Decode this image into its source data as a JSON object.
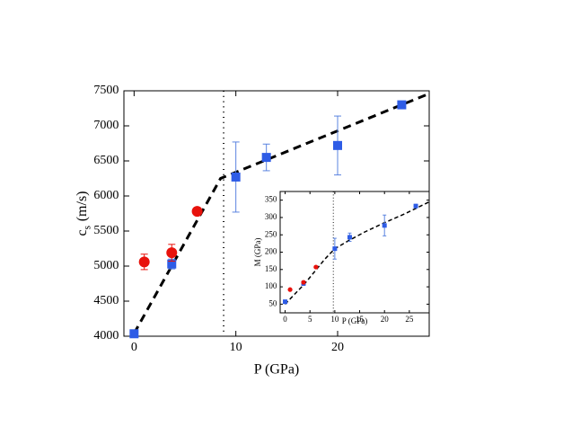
{
  "chart_data": [
    {
      "type": "scatter",
      "xlabel": "P (GPa)",
      "ylabel": "c",
      "ylabel_sub": "s",
      "ylabel_unit": "(m/s)",
      "xlim": [
        -1,
        29
      ],
      "ylim": [
        4000,
        7500
      ],
      "xticks": [
        0,
        10,
        20
      ],
      "yticks": [
        4000,
        4500,
        5000,
        5500,
        6000,
        6500,
        7000,
        7500
      ],
      "vline": 8.8,
      "fits": [
        {
          "color": "#000000",
          "x": [
            0,
            8.5,
            29
          ],
          "values": [
            4040,
            6250,
            7460
          ]
        }
      ],
      "series": [
        {
          "marker": "square",
          "color": "#2e5ce6",
          "error_color": "#5b84e0",
          "x": [
            0,
            3.7,
            10,
            13,
            20,
            26.3
          ],
          "values": [
            4035,
            5030,
            6270,
            6550,
            6720,
            7300
          ],
          "errors": [
            20,
            70,
            500,
            190,
            420,
            30
          ]
        },
        {
          "marker": "circle",
          "color": "#e8120c",
          "error_color": "#e8120c",
          "x": [
            1,
            3.7,
            6.2
          ],
          "values": [
            5060,
            5190,
            5780
          ],
          "errors": [
            110,
            120,
            40
          ]
        }
      ]
    },
    {
      "type": "scatter",
      "xlabel": "P (GPa)",
      "ylabel": "M (GPa)",
      "xlim": [
        -1,
        29
      ],
      "ylim": [
        25,
        375
      ],
      "xticks": [
        0,
        5,
        10,
        15,
        20,
        25
      ],
      "yticks": [
        50,
        100,
        150,
        200,
        250,
        300,
        350
      ],
      "vline": 9.7,
      "fits": [
        {
          "color": "#000000",
          "x": [
            0,
            2,
            4,
            6,
            8,
            10,
            13,
            16,
            20,
            24,
            29
          ],
          "values": [
            50,
            80,
            110,
            145,
            180,
            210,
            235,
            258,
            285,
            310,
            345
          ]
        }
      ],
      "series": [
        {
          "marker": "square",
          "color": "#2e5ce6",
          "error_color": "#5b84e0",
          "x": [
            0,
            3.7,
            10,
            13,
            20,
            26.3
          ],
          "values": [
            57,
            110,
            210,
            243,
            277,
            333
          ],
          "errors": [
            5,
            6,
            30,
            12,
            30,
            5
          ]
        },
        {
          "marker": "circle",
          "color": "#e8120c",
          "error_color": "#e8120c",
          "x": [
            1,
            3.7,
            6.2
          ],
          "values": [
            92,
            113,
            157
          ],
          "errors": [
            3,
            4,
            3
          ]
        }
      ]
    }
  ]
}
